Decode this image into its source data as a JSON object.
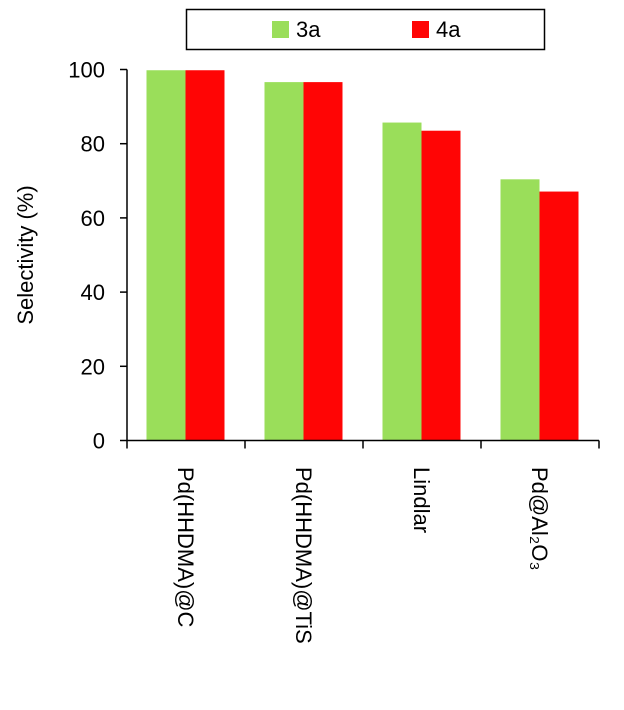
{
  "chart_data": {
    "type": "bar",
    "title": "",
    "xlabel": "",
    "ylabel": "Selectivity (%)",
    "ylim": [
      0,
      100
    ],
    "yticks": [
      0,
      20,
      40,
      60,
      80,
      100
    ],
    "grid": false,
    "legend_position": "top",
    "categories": [
      "Pd(HHDMA)@C",
      "Pd(HHDMA)@TiS",
      "Lindlar",
      "Pd@Al₂O₃"
    ],
    "series": [
      {
        "name": "3a",
        "color": "#9ade5a",
        "values": [
          99.8,
          96.6,
          85.7,
          70.4
        ]
      },
      {
        "name": "4a",
        "color": "#ff0505",
        "values": [
          99.8,
          96.6,
          83.5,
          67.1
        ]
      }
    ]
  }
}
